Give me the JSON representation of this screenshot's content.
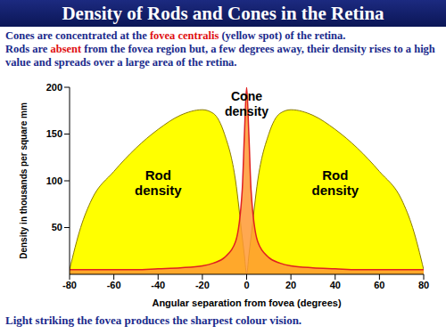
{
  "chart_data": {
    "type": "area",
    "title": "Density of Rods and Cones in the Retina",
    "subtitle": [
      "Cones are concentrated at the fovea centralis (yellow spot) of the retina.",
      "Rods are absent from the fovea region but, a few degrees away, their density rises to a high value and spreads over a large area of the retina."
    ],
    "highlights": [
      "fovea centralis",
      "absent"
    ],
    "footer": "Light striking the fovea produces the sharpest colour vision.",
    "x_label": "Angular separation from fovea (degrees)",
    "y_label": "Density in thousands per square mm",
    "annotations": [
      "Cone density",
      "Rod density",
      "Rod density"
    ],
    "x": [
      -80,
      -75,
      -70,
      -60,
      -50,
      -40,
      -30,
      -20,
      -15,
      -10,
      -5,
      -2,
      -1,
      0,
      1,
      2,
      5,
      10,
      15,
      20,
      30,
      40,
      50,
      60,
      70,
      75,
      80
    ],
    "series": [
      {
        "name": "Rod density",
        "color": "#ffff00",
        "values": [
          5,
          50,
          80,
          110,
          135,
          155,
          170,
          176,
          172,
          150,
          100,
          40,
          20,
          0,
          20,
          40,
          100,
          150,
          172,
          176,
          170,
          155,
          135,
          110,
          80,
          50,
          5
        ]
      },
      {
        "name": "Cone density",
        "color": "#ff9933",
        "values": [
          5,
          5,
          5,
          5,
          5,
          6,
          7,
          9,
          12,
          18,
          35,
          90,
          150,
          200,
          150,
          90,
          35,
          18,
          12,
          9,
          7,
          6,
          5,
          5,
          5,
          5,
          5
        ]
      }
    ],
    "xlim": [
      -80,
      80
    ],
    "xticks": [
      -80,
      -60,
      -40,
      -20,
      0,
      20,
      40,
      60,
      80
    ],
    "ylim": [
      0,
      200
    ],
    "yticks": [
      50,
      100,
      150,
      200
    ],
    "grid": false
  }
}
